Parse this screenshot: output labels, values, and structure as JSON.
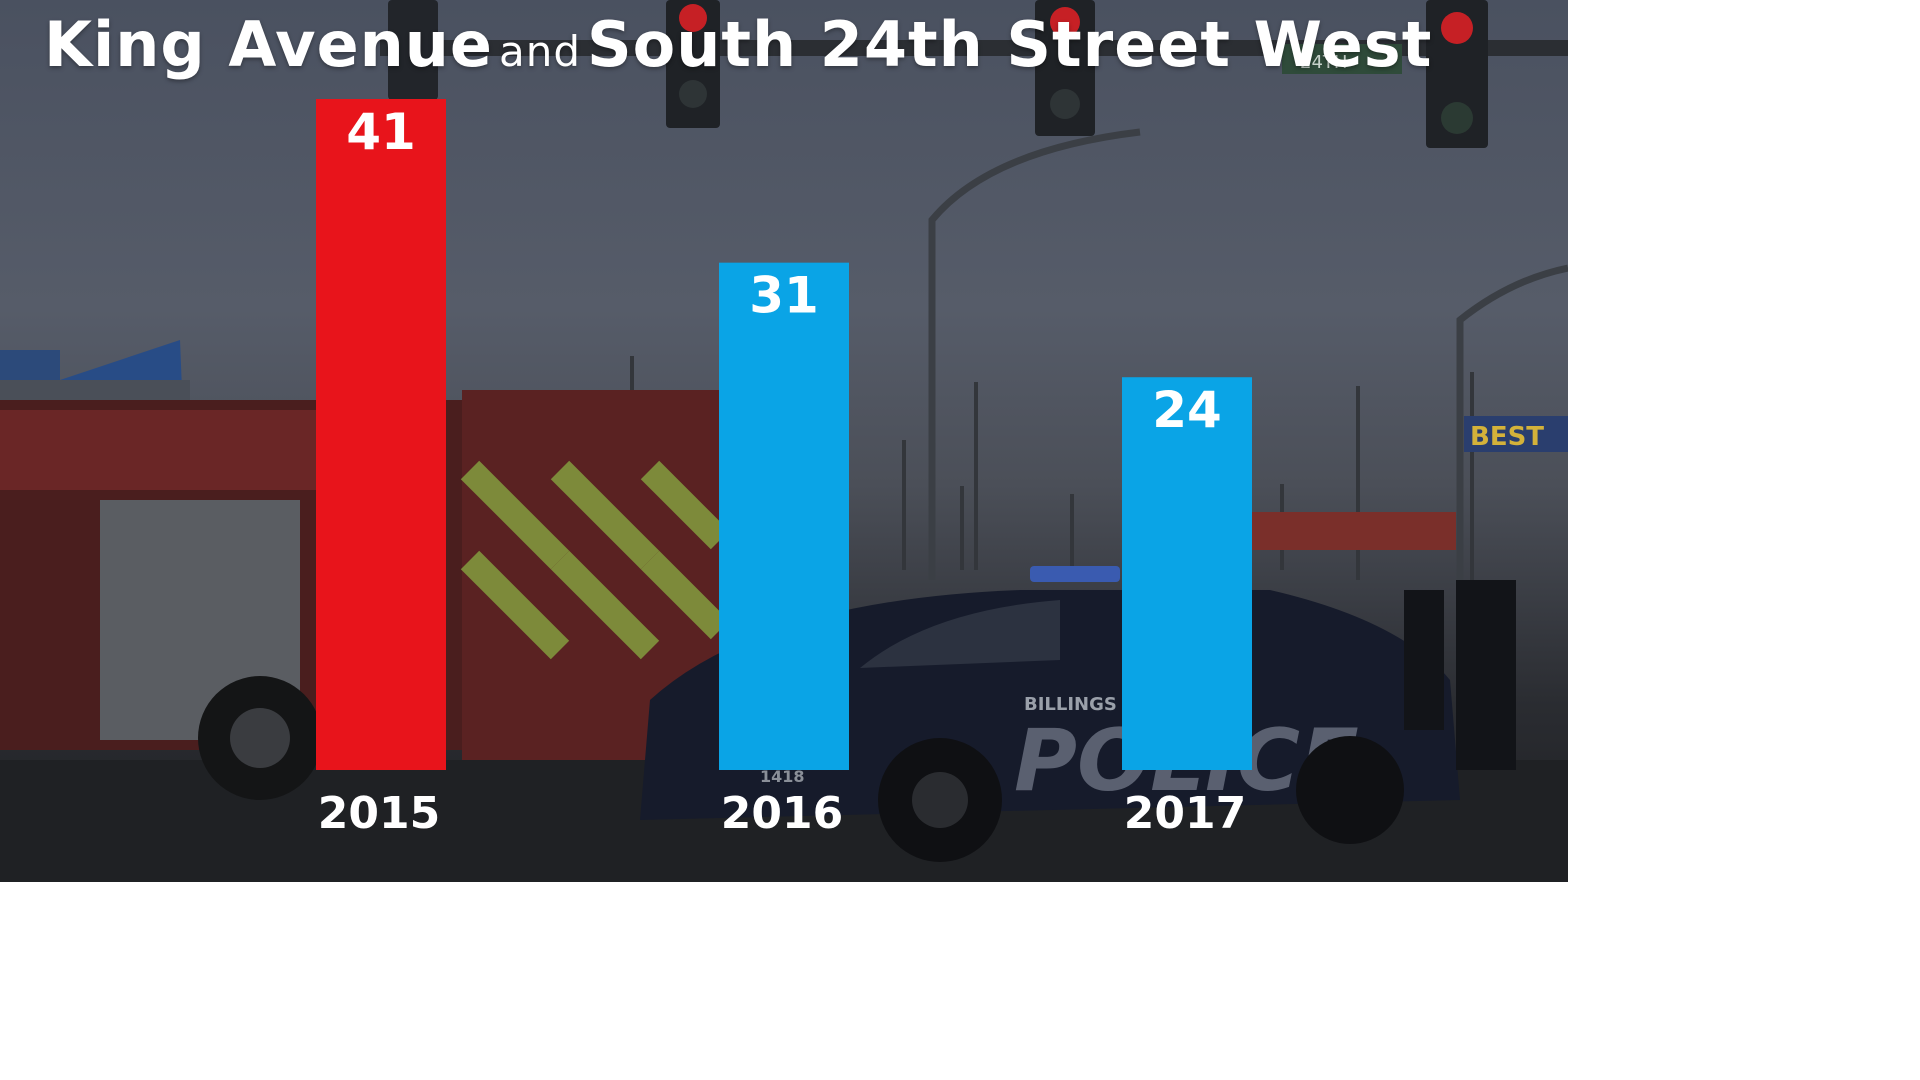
{
  "title": {
    "part1": "King Avenue",
    "conjunction": "and",
    "part2": "South 24th Street West"
  },
  "colors": {
    "highlight": "#e8141b",
    "default": "#0aa4e6"
  },
  "chart_data": {
    "type": "bar",
    "title": "King Avenue and South 24th Street West",
    "categories": [
      "2015",
      "2016",
      "2017"
    ],
    "values": [
      41,
      31,
      24
    ],
    "bar_colors": [
      "#e8141b",
      "#0aa4e6",
      "#0aa4e6"
    ],
    "value_labels": [
      "41",
      "31",
      "24"
    ],
    "xlabel": "",
    "ylabel": "",
    "ylim": [
      0,
      41
    ],
    "grid": false,
    "legend": "none"
  },
  "background": {
    "description_icons": [
      "traffic-light-icon",
      "fire-truck-icon",
      "police-car-icon",
      "street-lamp-icon"
    ],
    "store_sign": "BEST",
    "car_text": "BILLINGS",
    "car_door_text": "POLICE",
    "car_number": "1418",
    "street_sign": "24TH"
  }
}
